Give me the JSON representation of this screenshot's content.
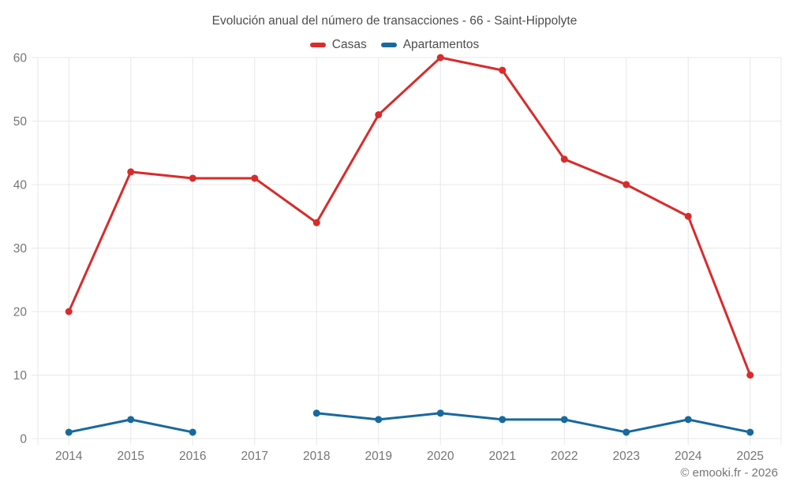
{
  "title": "Evolución anual del número de transacciones - 66 - Saint-Hippolyte",
  "footer": "© emooki.fr - 2026",
  "colors": {
    "casas": "#d92b2b",
    "apartamentos": "#17699e",
    "grid": "#e8e8e8",
    "tick_label": "#757575",
    "title_text": "#4d4d4d"
  },
  "chart_data": {
    "type": "line",
    "title": "Evolución anual del número de transacciones - 66 - Saint-Hippolyte",
    "categories": [
      "2014",
      "2015",
      "2016",
      "2017",
      "2018",
      "2019",
      "2020",
      "2021",
      "2022",
      "2023",
      "2024",
      "2025"
    ],
    "series": [
      {
        "name": "Casas",
        "color": "#d92b2b",
        "values": [
          20,
          42,
          41,
          41,
          34,
          51,
          60,
          58,
          44,
          40,
          35,
          10
        ]
      },
      {
        "name": "Apartamentos",
        "color": "#17699e",
        "values": [
          1,
          3,
          1,
          null,
          4,
          3,
          4,
          3,
          3,
          1,
          3,
          1
        ]
      }
    ],
    "xlabel": "",
    "ylabel": "",
    "ylim": [
      0,
      60
    ],
    "ytick_step": 10,
    "yticks": [
      0,
      10,
      20,
      30,
      40,
      50,
      60
    ],
    "grid": true,
    "legend_position": "top",
    "gap_note": "Apartamentos has no data point in 2017"
  }
}
